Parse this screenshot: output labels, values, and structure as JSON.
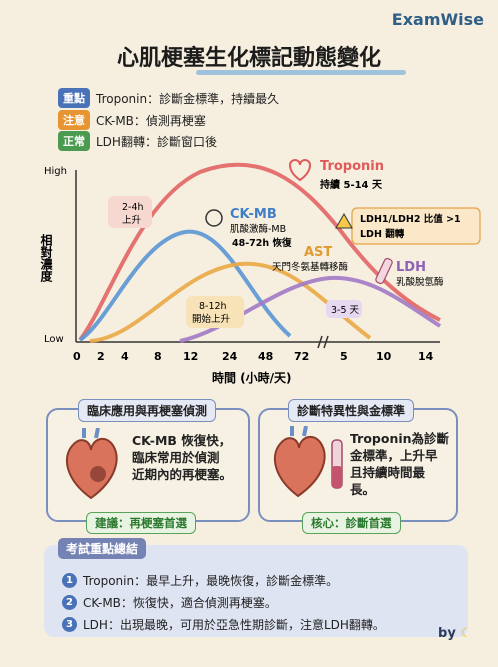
{
  "brand": "ExamWise",
  "title": "心肌梗塞生化標記動態變化",
  "legend": [
    {
      "tag": "重點",
      "color": "#4a72b8",
      "text": "Troponin：診斷金標準，持續最久"
    },
    {
      "tag": "注意",
      "color": "#e79432",
      "text": "CK-MB：偵測再梗塞"
    },
    {
      "tag": "正常",
      "color": "#4a9a4f",
      "text": "LDH翻轉：診斷窗口後"
    }
  ],
  "chart_data": {
    "type": "line",
    "ylabel": "相對濃度",
    "xlabel": "時間 (小時/天)",
    "y_ticks": [
      "High",
      "Low"
    ],
    "x_ticks_hours": [
      "0",
      "2",
      "4",
      "8",
      "12",
      "24",
      "48",
      "72"
    ],
    "x_ticks_days": [
      "5",
      "10",
      "14"
    ],
    "series": [
      {
        "name": "Troponin",
        "color": "#e05a5a",
        "note": "持續 5-14 天",
        "x": [
          "0",
          "4",
          "8",
          "12",
          "24",
          "48",
          "72",
          "5",
          "10",
          "14"
        ],
        "y": [
          0.05,
          0.3,
          0.62,
          0.85,
          0.98,
          0.96,
          0.88,
          0.75,
          0.45,
          0.15
        ]
      },
      {
        "name": "CK-MB",
        "sub": "肌酸激酶-MB",
        "color": "#4f8fd0",
        "note": "48-72h 恢復",
        "x": [
          "0",
          "4",
          "8",
          "12",
          "24",
          "48",
          "72"
        ],
        "y": [
          0.05,
          0.25,
          0.6,
          0.78,
          0.72,
          0.3,
          0.05
        ]
      },
      {
        "name": "AST",
        "sub": "天門冬氨基轉移酶",
        "color": "#e8a43a",
        "x": [
          "0",
          "4",
          "8",
          "12",
          "24",
          "48",
          "72",
          "5",
          "10"
        ],
        "y": [
          0.02,
          0.05,
          0.2,
          0.42,
          0.58,
          0.55,
          0.35,
          0.12,
          0.03
        ]
      },
      {
        "name": "LDH",
        "sub": "乳酸脫氫酶",
        "color": "#9a6fc0",
        "x": [
          "12",
          "24",
          "48",
          "72",
          "5",
          "10",
          "14"
        ],
        "y": [
          0.02,
          0.1,
          0.3,
          0.45,
          0.48,
          0.3,
          0.1
        ]
      }
    ],
    "annotations": [
      "2-4h 上升",
      "8-12h 開始上升",
      "3-5 天",
      "LDH1/LDH2 比值 >1 LDH 翻轉"
    ]
  },
  "panels": [
    {
      "title": "臨床應用與再梗塞偵測",
      "text": [
        "CK-MB 恢復快，",
        "臨床常用於偵測",
        "近期內的再梗塞。"
      ],
      "foot": "建議：再梗塞首選"
    },
    {
      "title": "診斷特異性與金標準",
      "text": [
        "Troponin為診斷",
        "金標準，上升早",
        "且持續時間最",
        "長。"
      ],
      "foot": "核心：診斷首選"
    }
  ],
  "summary": {
    "title": "考試重點總結",
    "items": [
      "Troponin：最早上升，最晚恢復，診斷金標準。",
      "CK-MB：恢復快，適合偵測再梗塞。",
      "LDH：出現最晚，可用於亞急性期診斷，注意LDH翻轉。"
    ]
  },
  "by": "by"
}
